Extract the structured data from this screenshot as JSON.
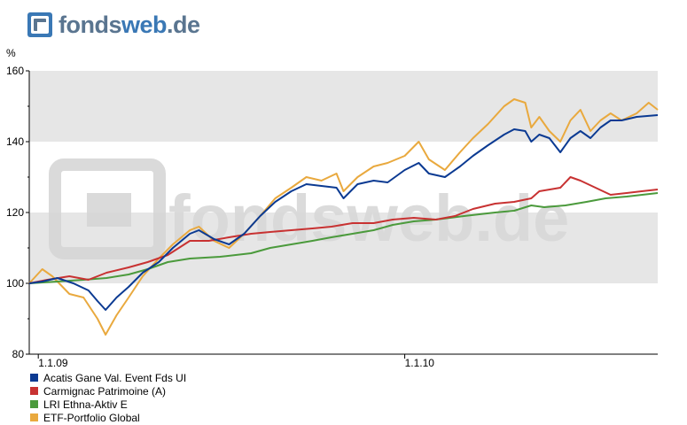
{
  "logo": {
    "part1": "fonds",
    "part2": "web",
    "part3": ".de"
  },
  "watermark": {
    "part1": "fonds",
    "part2": "web",
    "part3": ".de"
  },
  "chart_data": {
    "type": "line",
    "ylabel": "%",
    "ylim": [
      80,
      160
    ],
    "yticks": [
      80,
      100,
      120,
      140,
      160
    ],
    "xlim": [
      "2008-12-23",
      "2010-09-10"
    ],
    "xticks": [
      {
        "date": "2009-01-01",
        "label": "1.1.09"
      },
      {
        "date": "2010-01-01",
        "label": "1.1.10"
      }
    ],
    "grid_bands": [
      [
        100,
        120
      ],
      [
        140,
        160
      ]
    ],
    "legend_position": "bottom-left",
    "series": [
      {
        "name": "Acatis Gane Val. Event Fds UI",
        "color": "#0b3a92",
        "points": [
          [
            "2008-12-23",
            100
          ],
          [
            "2009-01-05",
            100.5
          ],
          [
            "2009-01-20",
            101.5
          ],
          [
            "2009-02-05",
            100
          ],
          [
            "2009-02-20",
            98
          ],
          [
            "2009-03-01",
            95
          ],
          [
            "2009-03-09",
            92.5
          ],
          [
            "2009-03-20",
            96
          ],
          [
            "2009-04-01",
            99
          ],
          [
            "2009-04-15",
            103
          ],
          [
            "2009-05-01",
            106
          ],
          [
            "2009-05-15",
            110
          ],
          [
            "2009-06-01",
            114
          ],
          [
            "2009-06-10",
            115
          ],
          [
            "2009-06-25",
            112.5
          ],
          [
            "2009-07-10",
            111
          ],
          [
            "2009-07-25",
            114
          ],
          [
            "2009-08-10",
            119
          ],
          [
            "2009-08-25",
            123
          ],
          [
            "2009-09-10",
            126
          ],
          [
            "2009-09-25",
            128
          ],
          [
            "2009-10-10",
            127.5
          ],
          [
            "2009-10-25",
            127
          ],
          [
            "2009-11-01",
            124
          ],
          [
            "2009-11-15",
            128
          ],
          [
            "2009-12-01",
            129
          ],
          [
            "2009-12-15",
            128.5
          ],
          [
            "2010-01-01",
            132
          ],
          [
            "2010-01-15",
            134
          ],
          [
            "2010-01-25",
            131
          ],
          [
            "2010-02-10",
            130
          ],
          [
            "2010-02-25",
            133
          ],
          [
            "2010-03-10",
            136
          ],
          [
            "2010-03-25",
            139
          ],
          [
            "2010-04-10",
            142
          ],
          [
            "2010-04-20",
            143.5
          ],
          [
            "2010-05-01",
            143
          ],
          [
            "2010-05-07",
            140
          ],
          [
            "2010-05-15",
            142
          ],
          [
            "2010-05-25",
            141
          ],
          [
            "2010-06-05",
            137
          ],
          [
            "2010-06-15",
            141
          ],
          [
            "2010-06-25",
            143
          ],
          [
            "2010-07-05",
            141
          ],
          [
            "2010-07-15",
            144
          ],
          [
            "2010-07-25",
            146
          ],
          [
            "2010-08-05",
            146
          ],
          [
            "2010-08-20",
            147
          ],
          [
            "2010-09-10",
            147.5
          ]
        ]
      },
      {
        "name": "Carmignac Patrimoine (A)",
        "color": "#c83232",
        "points": [
          [
            "2008-12-23",
            100
          ],
          [
            "2009-01-10",
            101
          ],
          [
            "2009-02-01",
            102
          ],
          [
            "2009-02-20",
            101
          ],
          [
            "2009-03-10",
            103
          ],
          [
            "2009-04-01",
            104.5
          ],
          [
            "2009-04-20",
            106
          ],
          [
            "2009-05-10",
            108
          ],
          [
            "2009-06-01",
            112
          ],
          [
            "2009-06-20",
            112
          ],
          [
            "2009-07-10",
            113
          ],
          [
            "2009-08-01",
            114
          ],
          [
            "2009-08-20",
            114.5
          ],
          [
            "2009-09-10",
            115
          ],
          [
            "2009-10-01",
            115.5
          ],
          [
            "2009-10-20",
            116
          ],
          [
            "2009-11-10",
            117
          ],
          [
            "2009-12-01",
            117
          ],
          [
            "2009-12-20",
            118
          ],
          [
            "2010-01-10",
            118.5
          ],
          [
            "2010-02-01",
            118
          ],
          [
            "2010-02-20",
            119
          ],
          [
            "2010-03-10",
            121
          ],
          [
            "2010-04-01",
            122.5
          ],
          [
            "2010-04-20",
            123
          ],
          [
            "2010-05-07",
            124
          ],
          [
            "2010-05-15",
            126
          ],
          [
            "2010-06-05",
            127
          ],
          [
            "2010-06-15",
            130
          ],
          [
            "2010-06-25",
            129
          ],
          [
            "2010-07-10",
            127
          ],
          [
            "2010-07-25",
            125
          ],
          [
            "2010-08-10",
            125.5
          ],
          [
            "2010-08-25",
            126
          ],
          [
            "2010-09-10",
            126.5
          ]
        ]
      },
      {
        "name": "LRI Ethna-Aktiv E",
        "color": "#4b9a3c",
        "points": [
          [
            "2008-12-23",
            100
          ],
          [
            "2009-01-20",
            100.5
          ],
          [
            "2009-02-15",
            101
          ],
          [
            "2009-03-10",
            101.5
          ],
          [
            "2009-04-01",
            102.5
          ],
          [
            "2009-04-20",
            104
          ],
          [
            "2009-05-10",
            106
          ],
          [
            "2009-06-01",
            107
          ],
          [
            "2009-07-01",
            107.5
          ],
          [
            "2009-08-01",
            108.5
          ],
          [
            "2009-08-20",
            110
          ],
          [
            "2009-09-10",
            111
          ],
          [
            "2009-10-01",
            112
          ],
          [
            "2009-10-20",
            113
          ],
          [
            "2009-11-10",
            114
          ],
          [
            "2009-12-01",
            115
          ],
          [
            "2009-12-20",
            116.5
          ],
          [
            "2010-01-10",
            117.5
          ],
          [
            "2010-02-01",
            118
          ],
          [
            "2010-03-01",
            119
          ],
          [
            "2010-04-01",
            120
          ],
          [
            "2010-04-20",
            120.5
          ],
          [
            "2010-05-07",
            122
          ],
          [
            "2010-05-20",
            121.5
          ],
          [
            "2010-06-10",
            122
          ],
          [
            "2010-07-01",
            123
          ],
          [
            "2010-07-20",
            124
          ],
          [
            "2010-08-10",
            124.5
          ],
          [
            "2010-09-10",
            125.5
          ]
        ]
      },
      {
        "name": "ETF-Portfolio Global",
        "color": "#e9a93e",
        "points": [
          [
            "2008-12-23",
            100
          ],
          [
            "2009-01-05",
            104
          ],
          [
            "2009-01-15",
            102
          ],
          [
            "2009-02-01",
            97
          ],
          [
            "2009-02-15",
            96
          ],
          [
            "2009-03-01",
            90
          ],
          [
            "2009-03-09",
            85.5
          ],
          [
            "2009-03-20",
            91
          ],
          [
            "2009-04-01",
            96
          ],
          [
            "2009-04-15",
            102
          ],
          [
            "2009-05-01",
            107
          ],
          [
            "2009-05-15",
            111
          ],
          [
            "2009-06-01",
            115
          ],
          [
            "2009-06-10",
            116
          ],
          [
            "2009-06-25",
            112
          ],
          [
            "2009-07-10",
            110
          ],
          [
            "2009-07-25",
            114
          ],
          [
            "2009-08-10",
            119
          ],
          [
            "2009-08-25",
            124
          ],
          [
            "2009-09-10",
            127
          ],
          [
            "2009-09-25",
            130
          ],
          [
            "2009-10-10",
            129
          ],
          [
            "2009-10-25",
            131
          ],
          [
            "2009-11-01",
            126
          ],
          [
            "2009-11-15",
            130
          ],
          [
            "2009-12-01",
            133
          ],
          [
            "2009-12-15",
            134
          ],
          [
            "2010-01-01",
            136
          ],
          [
            "2010-01-15",
            140
          ],
          [
            "2010-01-25",
            135
          ],
          [
            "2010-02-10",
            132
          ],
          [
            "2010-02-25",
            137
          ],
          [
            "2010-03-10",
            141
          ],
          [
            "2010-03-25",
            145
          ],
          [
            "2010-04-10",
            150
          ],
          [
            "2010-04-20",
            152
          ],
          [
            "2010-05-01",
            151
          ],
          [
            "2010-05-07",
            144
          ],
          [
            "2010-05-15",
            147
          ],
          [
            "2010-05-25",
            143
          ],
          [
            "2010-06-05",
            140
          ],
          [
            "2010-06-15",
            146
          ],
          [
            "2010-06-25",
            149
          ],
          [
            "2010-07-05",
            143
          ],
          [
            "2010-07-15",
            146
          ],
          [
            "2010-07-25",
            148
          ],
          [
            "2010-08-05",
            146
          ],
          [
            "2010-08-20",
            148
          ],
          [
            "2010-09-01",
            151
          ],
          [
            "2010-09-10",
            149
          ]
        ]
      }
    ]
  }
}
